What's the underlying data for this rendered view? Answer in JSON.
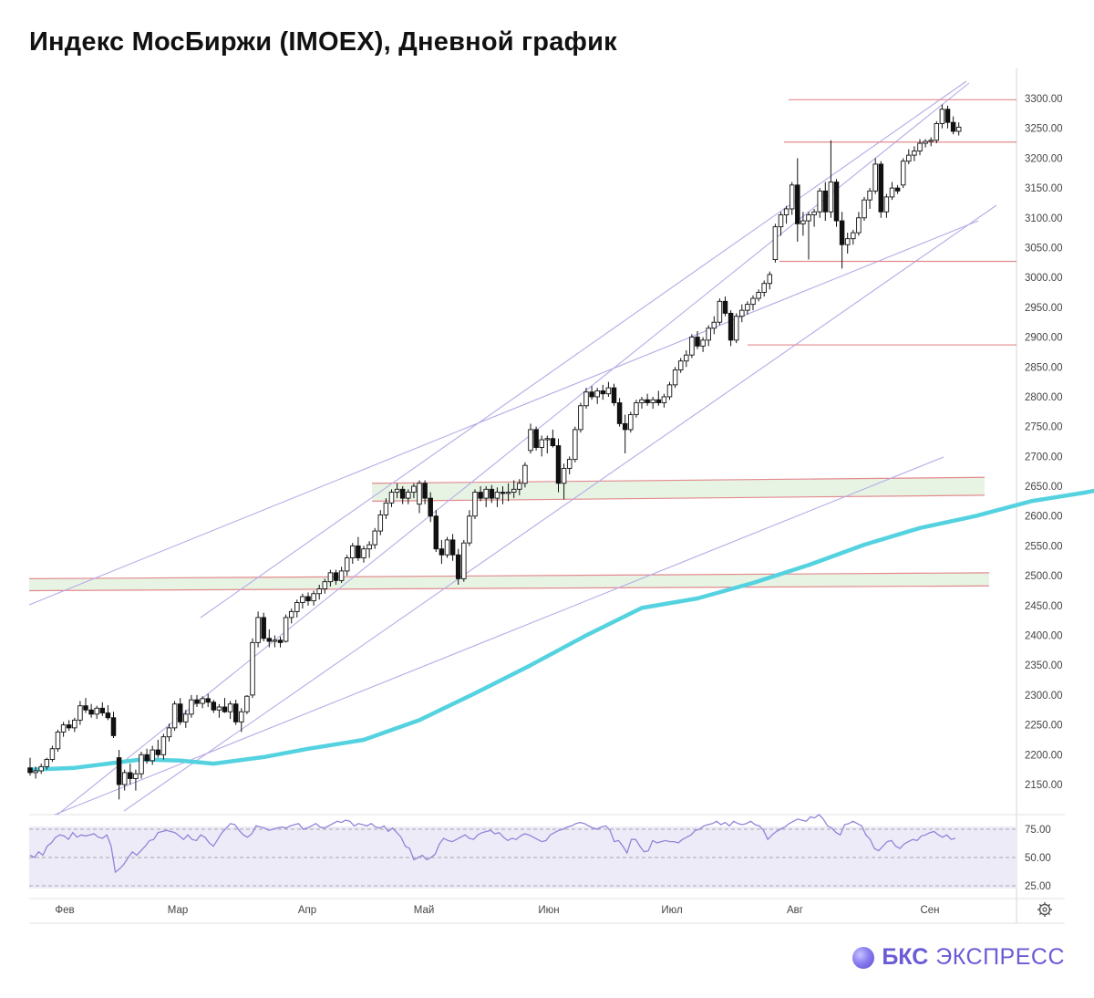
{
  "title": "Индекс МосБиржи (IMOEX), Дневной график",
  "brand": {
    "bold": "БКС",
    "light": "ЭКСПРЕСС",
    "color": "#6a5bd6"
  },
  "chart_data": {
    "type": "candlestick",
    "ylim": [
      2100,
      3330
    ],
    "yticks": [
      "3300.00",
      "3250.00",
      "3200.00",
      "3150.00",
      "3100.00",
      "3050.00",
      "3000.00",
      "2950.00",
      "2900.00",
      "2850.00",
      "2800.00",
      "2750.00",
      "2700.00",
      "2650.00",
      "2600.00",
      "2550.00",
      "2500.00",
      "2450.00",
      "2400.00",
      "2350.00",
      "2300.00",
      "2250.00",
      "2200.00",
      "2150.00"
    ],
    "months": [
      "Фев",
      "Мар",
      "Апр",
      "Май",
      "Июн",
      "Июл",
      "Авг",
      "Сен"
    ],
    "candles": [
      [
        2178,
        2195,
        2165,
        2170
      ],
      [
        2170,
        2180,
        2160,
        2173
      ],
      [
        2173,
        2185,
        2168,
        2180
      ],
      [
        2180,
        2195,
        2175,
        2192
      ],
      [
        2192,
        2215,
        2188,
        2210
      ],
      [
        2210,
        2242,
        2205,
        2238
      ],
      [
        2238,
        2255,
        2230,
        2250
      ],
      [
        2250,
        2258,
        2240,
        2245
      ],
      [
        2245,
        2262,
        2238,
        2258
      ],
      [
        2258,
        2290,
        2250,
        2282
      ],
      [
        2282,
        2295,
        2270,
        2275
      ],
      [
        2275,
        2285,
        2262,
        2268
      ],
      [
        2268,
        2282,
        2260,
        2278
      ],
      [
        2278,
        2288,
        2265,
        2270
      ],
      [
        2270,
        2283,
        2258,
        2262
      ],
      [
        2262,
        2272,
        2228,
        2232
      ],
      [
        2195,
        2208,
        2125,
        2150
      ],
      [
        2150,
        2175,
        2140,
        2170
      ],
      [
        2170,
        2185,
        2150,
        2160
      ],
      [
        2160,
        2175,
        2140,
        2168
      ],
      [
        2168,
        2205,
        2160,
        2200
      ],
      [
        2200,
        2210,
        2185,
        2190
      ],
      [
        2190,
        2215,
        2183,
        2208
      ],
      [
        2208,
        2225,
        2195,
        2200
      ],
      [
        2200,
        2235,
        2192,
        2230
      ],
      [
        2230,
        2252,
        2222,
        2245
      ],
      [
        2245,
        2290,
        2240,
        2285
      ],
      [
        2285,
        2295,
        2250,
        2255
      ],
      [
        2255,
        2275,
        2245,
        2268
      ],
      [
        2268,
        2300,
        2262,
        2292
      ],
      [
        2292,
        2300,
        2280,
        2286
      ],
      [
        2286,
        2298,
        2278,
        2294
      ],
      [
        2294,
        2302,
        2280,
        2288
      ],
      [
        2288,
        2292,
        2270,
        2275
      ],
      [
        2275,
        2285,
        2262,
        2280
      ],
      [
        2280,
        2295,
        2270,
        2272
      ],
      [
        2272,
        2290,
        2260,
        2285
      ],
      [
        2285,
        2292,
        2250,
        2255
      ],
      [
        2255,
        2278,
        2238,
        2272
      ],
      [
        2272,
        2300,
        2268,
        2298
      ],
      [
        2300,
        2395,
        2295,
        2388
      ],
      [
        2388,
        2440,
        2380,
        2430
      ],
      [
        2430,
        2438,
        2390,
        2395
      ],
      [
        2395,
        2410,
        2380,
        2390
      ],
      [
        2390,
        2400,
        2380,
        2392
      ],
      [
        2392,
        2398,
        2380,
        2388
      ],
      [
        2390,
        2435,
        2388,
        2430
      ],
      [
        2430,
        2445,
        2420,
        2440
      ],
      [
        2440,
        2460,
        2430,
        2455
      ],
      [
        2455,
        2470,
        2445,
        2465
      ],
      [
        2465,
        2472,
        2450,
        2458
      ],
      [
        2458,
        2475,
        2450,
        2470
      ],
      [
        2470,
        2485,
        2460,
        2478
      ],
      [
        2478,
        2495,
        2470,
        2490
      ],
      [
        2490,
        2510,
        2482,
        2505
      ],
      [
        2505,
        2510,
        2485,
        2492
      ],
      [
        2492,
        2515,
        2488,
        2508
      ],
      [
        2508,
        2535,
        2500,
        2530
      ],
      [
        2530,
        2555,
        2520,
        2550
      ],
      [
        2550,
        2565,
        2525,
        2530
      ],
      [
        2530,
        2550,
        2522,
        2545
      ],
      [
        2545,
        2558,
        2530,
        2552
      ],
      [
        2552,
        2580,
        2545,
        2575
      ],
      [
        2575,
        2610,
        2568,
        2602
      ],
      [
        2602,
        2630,
        2595,
        2622
      ],
      [
        2622,
        2645,
        2615,
        2640
      ],
      [
        2640,
        2655,
        2630,
        2645
      ],
      [
        2645,
        2650,
        2620,
        2630
      ],
      [
        2630,
        2645,
        2620,
        2640
      ],
      [
        2640,
        2655,
        2630,
        2650
      ],
      [
        2620,
        2660,
        2605,
        2655
      ],
      [
        2655,
        2660,
        2620,
        2630
      ],
      [
        2630,
        2640,
        2590,
        2600
      ],
      [
        2600,
        2610,
        2540,
        2545
      ],
      [
        2545,
        2560,
        2520,
        2535
      ],
      [
        2535,
        2565,
        2530,
        2560
      ],
      [
        2560,
        2570,
        2525,
        2535
      ],
      [
        2535,
        2545,
        2485,
        2495
      ],
      [
        2495,
        2560,
        2490,
        2555
      ],
      [
        2555,
        2610,
        2550,
        2600
      ],
      [
        2600,
        2645,
        2595,
        2640
      ],
      [
        2640,
        2650,
        2625,
        2630
      ],
      [
        2630,
        2650,
        2615,
        2645
      ],
      [
        2645,
        2652,
        2622,
        2630
      ],
      [
        2630,
        2648,
        2615,
        2640
      ],
      [
        2640,
        2650,
        2620,
        2638
      ],
      [
        2638,
        2655,
        2625,
        2640
      ],
      [
        2640,
        2660,
        2630,
        2645
      ],
      [
        2645,
        2662,
        2635,
        2655
      ],
      [
        2655,
        2690,
        2648,
        2685
      ],
      [
        2710,
        2755,
        2705,
        2745
      ],
      [
        2745,
        2750,
        2710,
        2715
      ],
      [
        2715,
        2735,
        2700,
        2728
      ],
      [
        2728,
        2735,
        2705,
        2730
      ],
      [
        2730,
        2745,
        2715,
        2718
      ],
      [
        2718,
        2730,
        2640,
        2655
      ],
      [
        2655,
        2688,
        2628,
        2680
      ],
      [
        2680,
        2700,
        2670,
        2695
      ],
      [
        2695,
        2750,
        2690,
        2745
      ],
      [
        2745,
        2790,
        2740,
        2785
      ],
      [
        2785,
        2815,
        2780,
        2808
      ],
      [
        2808,
        2818,
        2795,
        2800
      ],
      [
        2800,
        2815,
        2788,
        2810
      ],
      [
        2810,
        2820,
        2795,
        2805
      ],
      [
        2805,
        2825,
        2800,
        2815
      ],
      [
        2815,
        2822,
        2785,
        2790
      ],
      [
        2790,
        2798,
        2750,
        2755
      ],
      [
        2755,
        2770,
        2705,
        2745
      ],
      [
        2745,
        2775,
        2740,
        2770
      ],
      [
        2770,
        2795,
        2765,
        2790
      ],
      [
        2790,
        2800,
        2780,
        2795
      ],
      [
        2795,
        2805,
        2785,
        2790
      ],
      [
        2790,
        2800,
        2780,
        2795
      ],
      [
        2795,
        2810,
        2785,
        2790
      ],
      [
        2790,
        2805,
        2782,
        2800
      ],
      [
        2800,
        2825,
        2795,
        2820
      ],
      [
        2820,
        2850,
        2815,
        2845
      ],
      [
        2845,
        2865,
        2840,
        2860
      ],
      [
        2860,
        2878,
        2850,
        2870
      ],
      [
        2870,
        2905,
        2865,
        2900
      ],
      [
        2900,
        2910,
        2880,
        2885
      ],
      [
        2885,
        2900,
        2875,
        2895
      ],
      [
        2895,
        2920,
        2885,
        2915
      ],
      [
        2915,
        2935,
        2905,
        2925
      ],
      [
        2925,
        2965,
        2920,
        2960
      ],
      [
        2960,
        2968,
        2935,
        2940
      ],
      [
        2940,
        2945,
        2885,
        2895
      ],
      [
        2895,
        2940,
        2890,
        2935
      ],
      [
        2935,
        2955,
        2925,
        2945
      ],
      [
        2945,
        2960,
        2938,
        2955
      ],
      [
        2955,
        2970,
        2945,
        2965
      ],
      [
        2965,
        2980,
        2960,
        2975
      ],
      [
        2975,
        2995,
        2968,
        2990
      ],
      [
        2990,
        3010,
        2980,
        3005
      ],
      [
        3030,
        3090,
        3025,
        3085
      ],
      [
        3085,
        3110,
        3070,
        3105
      ],
      [
        3105,
        3120,
        3090,
        3115
      ],
      [
        3115,
        3160,
        3105,
        3155
      ],
      [
        3155,
        3200,
        3060,
        3090
      ],
      [
        3090,
        3110,
        3070,
        3095
      ],
      [
        3095,
        3110,
        3030,
        3105
      ],
      [
        3105,
        3115,
        3085,
        3110
      ],
      [
        3110,
        3150,
        3100,
        3145
      ],
      [
        3145,
        3160,
        3095,
        3110
      ],
      [
        3110,
        3230,
        3100,
        3160
      ],
      [
        3160,
        3165,
        3085,
        3095
      ],
      [
        3095,
        3110,
        3015,
        3055
      ],
      [
        3055,
        3075,
        3040,
        3065
      ],
      [
        3065,
        3080,
        3055,
        3075
      ],
      [
        3075,
        3110,
        3070,
        3100
      ],
      [
        3100,
        3135,
        3095,
        3130
      ],
      [
        3130,
        3150,
        3115,
        3145
      ],
      [
        3145,
        3200,
        3140,
        3190
      ],
      [
        3190,
        3195,
        3100,
        3110
      ],
      [
        3110,
        3140,
        3100,
        3135
      ],
      [
        3135,
        3160,
        3130,
        3150
      ],
      [
        3150,
        3155,
        3140,
        3145
      ],
      [
        3155,
        3200,
        3150,
        3195
      ],
      [
        3195,
        3215,
        3190,
        3205
      ],
      [
        3205,
        3220,
        3195,
        3212
      ],
      [
        3212,
        3232,
        3205,
        3225
      ],
      [
        3225,
        3232,
        3218,
        3228
      ],
      [
        3228,
        3235,
        3220,
        3230
      ],
      [
        3230,
        3262,
        3225,
        3258
      ],
      [
        3258,
        3290,
        3250,
        3282
      ],
      [
        3282,
        3288,
        3250,
        3260
      ],
      [
        3260,
        3270,
        3240,
        3245
      ],
      [
        3245,
        3260,
        3238,
        3252
      ]
    ],
    "ma": [
      [
        0,
        2175
      ],
      [
        8,
        2178
      ],
      [
        14,
        2185
      ],
      [
        20,
        2192
      ],
      [
        27,
        2190
      ],
      [
        33,
        2185
      ],
      [
        42,
        2196
      ],
      [
        50,
        2210
      ],
      [
        60,
        2225
      ],
      [
        70,
        2258
      ],
      [
        80,
        2303
      ],
      [
        90,
        2350
      ],
      [
        100,
        2400
      ],
      [
        110,
        2446
      ],
      [
        120,
        2462
      ],
      [
        130,
        2488
      ],
      [
        140,
        2518
      ],
      [
        150,
        2552
      ],
      [
        160,
        2580
      ],
      [
        170,
        2600
      ],
      [
        180,
        2625
      ],
      [
        190,
        2640
      ],
      [
        200,
        2658
      ],
      [
        210,
        2678
      ],
      [
        220,
        2698
      ],
      [
        230,
        2725
      ],
      [
        240,
        2758
      ],
      [
        250,
        2785
      ],
      [
        260,
        2812
      ],
      [
        270,
        2842
      ],
      [
        280,
        2880
      ],
      [
        290,
        2910
      ],
      [
        300,
        2935
      ],
      [
        310,
        2958
      ],
      [
        320,
        2985
      ],
      [
        330,
        3000
      ],
      [
        339,
        3020
      ]
    ],
    "hlines": [
      [
        865,
        1115,
        3298
      ],
      [
        860,
        1115,
        3227
      ],
      [
        855,
        1115,
        3027
      ],
      [
        820,
        1115,
        2887
      ]
    ],
    "zones": [
      [
        408,
        1080,
        2655,
        2665,
        2625,
        2635
      ],
      [
        32,
        1085,
        2495,
        2505,
        2475,
        2483
      ]
    ],
    "trendlines": [
      [
        63,
        893,
        2120
      ],
      [
        1063,
        91,
        3323
      ],
      [
        32,
        663,
        2460
      ],
      [
        1073,
        242,
        3092
      ],
      [
        136,
        889,
        2127
      ],
      [
        1093,
        225,
        3130
      ],
      [
        220,
        677,
        2415
      ],
      [
        1060,
        89,
        3328
      ],
      [
        60,
        893,
        2116
      ],
      [
        1035,
        501,
        2700
      ]
    ],
    "rsi": {
      "levels": [
        75,
        50,
        25
      ],
      "values": [
        52,
        50,
        55,
        52,
        60,
        63,
        68,
        70,
        69,
        66,
        72,
        68,
        70,
        69,
        70,
        71,
        68,
        67,
        70,
        60,
        37,
        40,
        44,
        50,
        55,
        52,
        56,
        60,
        65,
        66,
        72,
        73,
        74,
        73,
        72,
        69,
        66,
        70,
        66,
        65,
        70,
        68,
        63,
        60,
        66,
        72,
        76,
        80,
        79,
        74,
        70,
        68,
        71,
        78,
        77,
        76,
        74,
        75,
        76,
        77,
        76,
        78,
        79,
        80,
        75,
        76,
        78,
        80,
        77,
        76,
        78,
        80,
        82,
        81,
        83,
        82,
        78,
        80,
        79,
        78,
        80,
        77,
        76,
        78,
        73,
        76,
        72,
        68,
        60,
        58,
        48,
        50,
        52,
        48,
        50,
        53,
        62,
        67,
        65,
        64,
        66,
        68,
        70,
        67,
        66,
        70,
        72,
        73,
        74,
        71,
        72,
        68,
        65,
        67,
        66,
        69,
        71,
        70,
        68,
        66,
        64,
        65,
        70,
        72,
        74,
        75,
        77,
        78,
        80,
        81,
        80,
        78,
        76,
        75,
        77,
        78,
        74,
        64,
        65,
        60,
        54,
        66,
        66,
        60,
        55,
        56,
        65,
        63,
        64,
        65,
        64,
        64,
        63,
        66,
        68,
        70,
        74,
        75,
        78,
        79,
        80,
        82,
        79,
        81,
        78,
        82,
        80,
        79,
        80,
        82,
        79,
        78,
        74,
        66,
        70,
        73,
        75,
        77,
        80,
        82,
        84,
        83,
        82,
        86,
        85,
        88,
        84,
        78,
        76,
        72,
        70,
        79,
        80,
        82,
        80,
        78,
        70,
        66,
        58,
        56,
        60,
        64,
        65,
        60,
        58,
        62,
        64,
        66,
        65,
        69,
        70,
        72,
        73,
        70,
        68,
        70,
        66,
        67
      ]
    },
    "colors": {
      "ma": "#55d2e0",
      "trend": "#b8aae6",
      "hline": "#e38a8e",
      "zone": "#e7f4e4",
      "rsi": "#9383d8",
      "rsi_band": "#eeebf8",
      "up": "#ffffff",
      "down": "#111111"
    }
  }
}
